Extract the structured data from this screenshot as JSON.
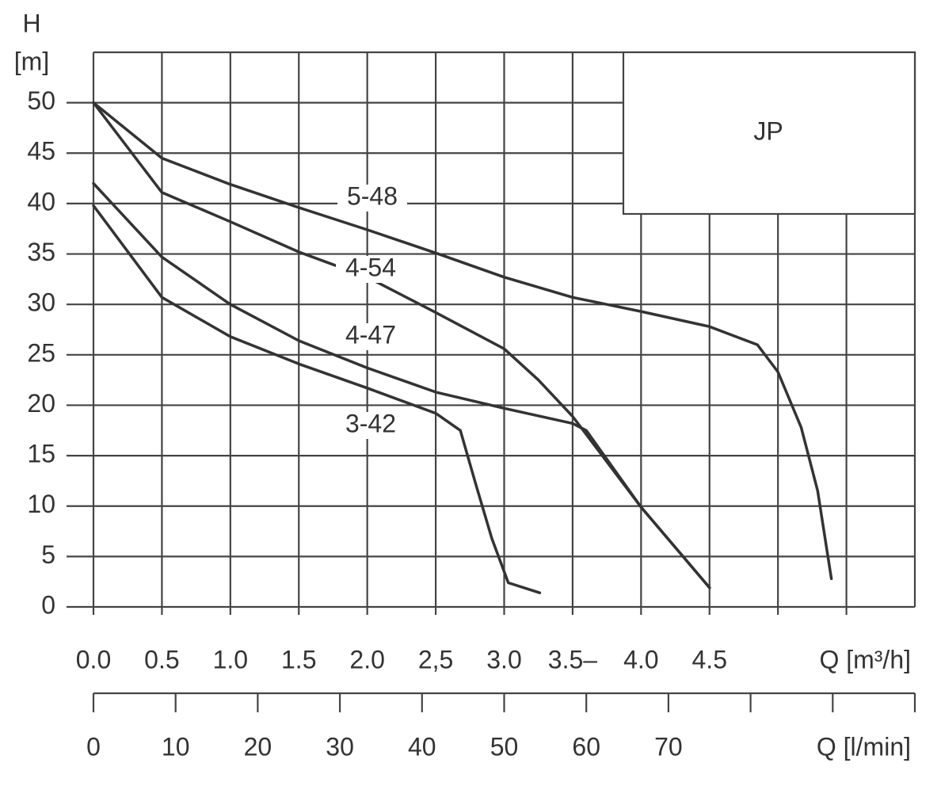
{
  "chart_data": {
    "type": "line",
    "title": "JP",
    "y_axis_label": "H",
    "y_axis_unit": "[m]",
    "x_axis_label": "Q [m³/h]",
    "x2_axis_label": "Q [l/min]",
    "xlim": [
      0,
      6
    ],
    "ylim": [
      0,
      55
    ],
    "x2lim": [
      0,
      100
    ],
    "xticks": [
      {
        "value": 0,
        "label": "0.0"
      },
      {
        "value": 0.5,
        "label": "0.5"
      },
      {
        "value": 1,
        "label": "1.0"
      },
      {
        "value": 1.5,
        "label": "1.5"
      },
      {
        "value": 2,
        "label": "2.0"
      },
      {
        "value": 2.5,
        "label": "2,5"
      },
      {
        "value": 3,
        "label": "3.0"
      },
      {
        "value": 3.5,
        "label": "3.5–"
      },
      {
        "value": 4,
        "label": "4.0"
      },
      {
        "value": 4.5,
        "label": "4.5"
      },
      {
        "value": 5,
        "label": null
      },
      {
        "value": 5.5,
        "label": null
      }
    ],
    "yticks": [
      0,
      5,
      10,
      15,
      20,
      25,
      30,
      35,
      40,
      45,
      50
    ],
    "x2ticks": [
      0,
      10,
      20,
      30,
      40,
      50,
      60,
      70,
      {
        "value": 80,
        "label": null
      },
      {
        "value": 90,
        "label": null
      },
      {
        "value": 100,
        "label": null
      }
    ],
    "grid": true,
    "series": [
      {
        "name": "5-48",
        "color": "#333333",
        "x": [
          0,
          0.5,
          1,
          1.5,
          2,
          2.5,
          3,
          3.5,
          4,
          4.5,
          4.85,
          5,
          5.17,
          5.29,
          5.39
        ],
        "values": [
          50,
          44.5,
          41.9,
          39.6,
          37.4,
          35.1,
          32.7,
          30.7,
          29.3,
          27.8,
          26,
          23.3,
          17.8,
          11.5,
          2.8
        ]
      },
      {
        "name": "4-54",
        "color": "#333333",
        "x": [
          0,
          0.5,
          1,
          1.5,
          2,
          2.5,
          3,
          3.25,
          3.5,
          4,
          4.5
        ],
        "values": [
          50,
          41.1,
          38.2,
          35.2,
          32.7,
          29.2,
          25.6,
          22.5,
          18.9,
          9.9,
          1.9
        ]
      },
      {
        "name": "4-47",
        "color": "#333333",
        "x": [
          0,
          0.5,
          1,
          1.5,
          2,
          2.5,
          3,
          3.5,
          3.6,
          4,
          4.5
        ],
        "values": [
          42,
          34.7,
          30,
          26.4,
          23.7,
          21.3,
          19.7,
          18.2,
          17.5,
          9.9,
          1.9
        ]
      },
      {
        "name": "3-42",
        "color": "#333333",
        "x": [
          0,
          0.5,
          1,
          1.5,
          2,
          2.5,
          2.68,
          2.79,
          2.91,
          3.03,
          3.26
        ],
        "values": [
          39.8,
          30.7,
          26.8,
          24.1,
          21.7,
          19.2,
          17.5,
          12.3,
          6.8,
          2.4,
          1.4
        ]
      }
    ]
  }
}
